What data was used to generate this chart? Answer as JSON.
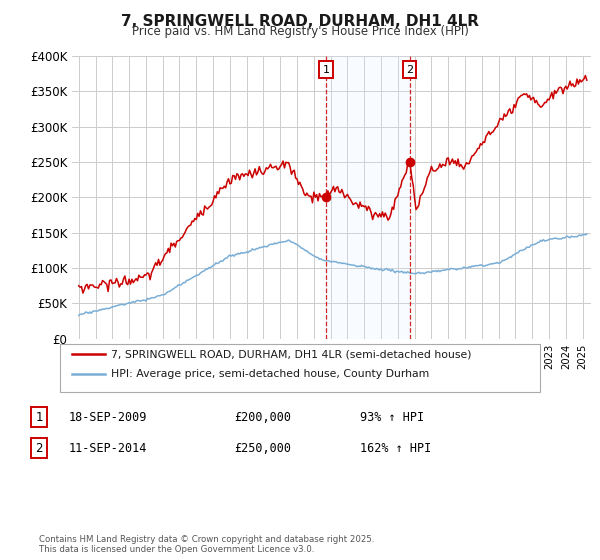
{
  "title": "7, SPRINGWELL ROAD, DURHAM, DH1 4LR",
  "subtitle": "Price paid vs. HM Land Registry's House Price Index (HPI)",
  "legend_line1": "7, SPRINGWELL ROAD, DURHAM, DH1 4LR (semi-detached house)",
  "legend_line2": "HPI: Average price, semi-detached house, County Durham",
  "footnote": "Contains HM Land Registry data © Crown copyright and database right 2025.\nThis data is licensed under the Open Government Licence v3.0.",
  "transaction1_label": "1",
  "transaction1_date": "18-SEP-2009",
  "transaction1_price": "£200,000",
  "transaction1_hpi": "93% ↑ HPI",
  "transaction2_label": "2",
  "transaction2_date": "11-SEP-2014",
  "transaction2_price": "£250,000",
  "transaction2_hpi": "162% ↑ HPI",
  "vline1_x": 2009.72,
  "vline2_x": 2014.7,
  "point1_x": 2009.72,
  "point1_y": 200000,
  "point2_x": 2014.7,
  "point2_y": 250000,
  "property_color": "#cc0000",
  "hpi_color": "#7aaed6",
  "shading_color": "#ddeeff",
  "ylim": [
    0,
    400000
  ],
  "xlim_start": 1994.6,
  "xlim_end": 2025.5,
  "background_color": "#ffffff",
  "grid_color": "#cccccc"
}
